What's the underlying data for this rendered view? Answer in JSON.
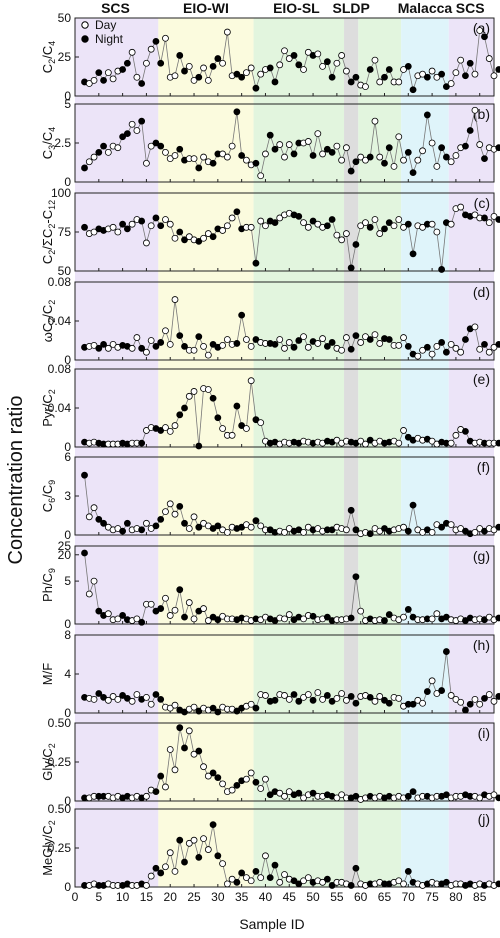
{
  "figure": {
    "ylabel": "Concentration ratio",
    "xlabel": "Sample ID",
    "x_ticks": [
      "0",
      "5",
      "10",
      "15",
      "20",
      "25",
      "30",
      "35",
      "40",
      "45",
      "50",
      "55",
      "60",
      "65",
      "70",
      "75",
      "80",
      "85"
    ],
    "x_tick_values": [
      0,
      5,
      10,
      15,
      20,
      25,
      30,
      35,
      40,
      45,
      50,
      55,
      60,
      65,
      70,
      75,
      80,
      85
    ],
    "xlim": [
      0,
      88
    ],
    "legend": [
      {
        "label": "Day",
        "marker": "open-circle"
      },
      {
        "label": "Night",
        "marker": "filled-circle"
      }
    ],
    "regions": [
      {
        "label": "SCS",
        "x0": 0,
        "x1": 17.5,
        "color": "#ece4f8",
        "label_color": "#8d3fd6"
      },
      {
        "label": "EIO-WI",
        "x0": 17.5,
        "x1": 37.5,
        "color": "#fbfbde",
        "label_color": "#e0a01c"
      },
      {
        "label": "EIO-SL",
        "x0": 37.5,
        "x1": 56.5,
        "color": "#e2f5de",
        "label_color": "#6aa834"
      },
      {
        "label": "SLDP",
        "x0": 56.5,
        "x1": 59.5,
        "color": "#dddddd",
        "label_color": "#555555"
      },
      {
        "label": "",
        "x0": 59.5,
        "x1": 68.5,
        "color": "#e2f5de",
        "label_color": "#6aa834"
      },
      {
        "label": "Malacca",
        "x0": 68.5,
        "x1": 78.5,
        "color": "#dff4fa",
        "label_color": "#2aa8dc"
      },
      {
        "label": "SCS",
        "x0": 78.5,
        "x1": 88,
        "color": "#ece4f8",
        "label_color": "#8d3fd6"
      }
    ]
  },
  "chart_data": [
    {
      "type": "scatter",
      "tag": "(a)",
      "ylabel": "C2/C4",
      "ylim": [
        0,
        50
      ],
      "yticks": [
        "0",
        "25",
        "50"
      ],
      "values": [
        9,
        8,
        10,
        15,
        10,
        15,
        11,
        16,
        17,
        21,
        28,
        12,
        8,
        21,
        30,
        35,
        21,
        37,
        12,
        13,
        26,
        16,
        19,
        10,
        12,
        18,
        10,
        19,
        24,
        21,
        41,
        13,
        14,
        12,
        15,
        18,
        5,
        14,
        17,
        18,
        9,
        20,
        29,
        24,
        26,
        20,
        17,
        28,
        26,
        27,
        19,
        22,
        12,
        21,
        26,
        16,
        9,
        12,
        7,
        6,
        17,
        23,
        9,
        12,
        17,
        9,
        9,
        17,
        19,
        4,
        13,
        14,
        12,
        16,
        12,
        14,
        6,
        8,
        15,
        23,
        13,
        21,
        14,
        42,
        38,
        24,
        13,
        17,
        18,
        22
      ]
    },
    {
      "type": "scatter",
      "tag": "(b)",
      "ylabel": "C3/C4",
      "ylim": [
        0,
        5
      ],
      "yticks": [
        "0",
        "2.5",
        "5"
      ],
      "values": [
        0.9,
        1.3,
        1.6,
        1.9,
        2.3,
        1.9,
        2.3,
        2.2,
        2.9,
        3.1,
        3.7,
        3.3,
        3.9,
        1.2,
        2.3,
        2.5,
        2.3,
        1.9,
        1.5,
        1.7,
        2.1,
        1.4,
        1.5,
        1.5,
        0.9,
        1.6,
        1.3,
        1.2,
        1.8,
        1.8,
        1.6,
        2.3,
        4.5,
        1.7,
        1.4,
        1.1,
        1.2,
        0.4,
        1.8,
        3.0,
        2.1,
        2.4,
        1.6,
        2.4,
        1.8,
        2.5,
        2.5,
        2.6,
        1.7,
        3.1,
        1.8,
        2.1,
        1.9,
        2.3,
        1.4,
        2.2,
        0.7,
        1.3,
        1.6,
        1.4,
        1.6,
        3.9,
        1.6,
        1.2,
        2.2,
        1.0,
        2.9,
        1.4,
        1.9,
        0.6,
        1.4,
        2.0,
        4.3,
        2.5,
        1.0,
        2.2,
        1.6,
        1.3,
        1.7,
        2.2,
        2.3,
        3.3,
        4.6,
        2.4,
        1.5,
        2.2,
        2.1,
        2.2,
        1.8,
        2.1
      ]
    },
    {
      "type": "scatter",
      "tag": "(c)",
      "ylabel": "C2/ΣC2-C12",
      "ylim": [
        50,
        100
      ],
      "yticks": [
        "50",
        "75",
        "100"
      ],
      "values": [
        78,
        74,
        75,
        77,
        76,
        77,
        78,
        75,
        80,
        77,
        80,
        83,
        82,
        68,
        79,
        84,
        79,
        83,
        80,
        71,
        75,
        70,
        72,
        70,
        69,
        71,
        74,
        72,
        77,
        76,
        79,
        84,
        88,
        77,
        78,
        78,
        55,
        82,
        79,
        82,
        81,
        84,
        86,
        87,
        86,
        85,
        81,
        78,
        82,
        80,
        78,
        79,
        83,
        73,
        70,
        74,
        52,
        67,
        79,
        81,
        78,
        83,
        74,
        77,
        81,
        79,
        83,
        78,
        80,
        61,
        79,
        78,
        80,
        80,
        75,
        51,
        81,
        80,
        90,
        91,
        86,
        85,
        86,
        84,
        84,
        81,
        85,
        83,
        86,
        86
      ]
    },
    {
      "type": "scatter",
      "tag": "(d)",
      "ylabel": "ωC2/C2",
      "ylim": [
        0,
        0.08
      ],
      "yticks": [
        "0",
        "0.04",
        "0.08"
      ],
      "values": [
        0.013,
        0.014,
        0.015,
        0.012,
        0.016,
        0.012,
        0.016,
        0.013,
        0.015,
        0.014,
        0.012,
        0.023,
        0.012,
        0.008,
        0.02,
        0.014,
        0.018,
        0.03,
        0.016,
        0.062,
        0.025,
        0.014,
        0.01,
        0.01,
        0.024,
        0.014,
        0.005,
        0.016,
        0.013,
        0.015,
        0.021,
        0.016,
        0.017,
        0.046,
        0.021,
        0.014,
        0.021,
        0.018,
        0.017,
        0.017,
        0.016,
        0.021,
        0.012,
        0.018,
        0.013,
        0.02,
        0.024,
        0.013,
        0.019,
        0.017,
        0.022,
        0.014,
        0.018,
        0.012,
        0.01,
        0.023,
        0.011,
        0.025,
        0.018,
        0.024,
        0.021,
        0.026,
        0.017,
        0.022,
        0.021,
        0.015,
        0.015,
        0.023,
        0.014,
        0.006,
        0.004,
        0.01,
        0.013,
        0.006,
        0.014,
        0.018,
        0.008,
        0.016,
        0.012,
        0.008,
        0.021,
        0.032,
        0.034,
        0.011,
        0.016,
        0.008,
        0.013,
        0.016,
        0.011,
        0.017
      ]
    },
    {
      "type": "scatter",
      "tag": "(e)",
      "ylabel": "Pyr/C2",
      "ylim": [
        0,
        0.08
      ],
      "yticks": [
        "0",
        "0.04",
        "0.08"
      ],
      "values": [
        0.005,
        0.004,
        0.005,
        0.004,
        0.003,
        0.003,
        0.003,
        0.003,
        0.004,
        0.003,
        0.004,
        0.004,
        0.004,
        0.017,
        0.02,
        0.019,
        0.017,
        0.02,
        0.016,
        0.022,
        0.033,
        0.04,
        0.052,
        0.057,
        0.001,
        0.06,
        0.059,
        0.05,
        0.03,
        0.019,
        0.012,
        0.012,
        0.042,
        0.022,
        0.019,
        0.068,
        0.028,
        0.025,
        0.006,
        0.004,
        0.005,
        0.003,
        0.005,
        0.004,
        0.005,
        0.004,
        0.006,
        0.005,
        0.004,
        0.005,
        0.004,
        0.006,
        0.005,
        0.007,
        0.004,
        0.006,
        0.005,
        0.004,
        0.006,
        0.003,
        0.007,
        0.004,
        0.006,
        0.004,
        0.005,
        0.006,
        0.004,
        0.017,
        0.01,
        0.007,
        0.009,
        0.007,
        0.008,
        0.006,
        0.003,
        0.005,
        0.004,
        0.004,
        0.012,
        0.018,
        0.016,
        0.006,
        0.004,
        0.005,
        0.004,
        0.004,
        0.004,
        0.004
      ]
    },
    {
      "type": "scatter",
      "tag": "(f)",
      "ylabel": "C6/C9",
      "ylim": [
        0,
        6
      ],
      "yticks": [
        "0",
        "3",
        "6"
      ],
      "values": [
        4.6,
        1.4,
        2.1,
        1.2,
        0.9,
        0.6,
        0.4,
        0.5,
        0.3,
        0.9,
        0.4,
        0.5,
        0.4,
        0.9,
        0.5,
        0.7,
        1.2,
        1.8,
        2.4,
        1.6,
        2.2,
        0.9,
        0.5,
        1.4,
        0.6,
        0.9,
        0.7,
        0.5,
        0.7,
        0.4,
        0.2,
        0.6,
        0.5,
        0.6,
        0.8,
        0.6,
        1.1,
        0.7,
        0.4,
        0.4,
        0.2,
        0.3,
        0.2,
        0.5,
        0.3,
        0.4,
        0.2,
        0.6,
        0.4,
        0.5,
        0.3,
        0.4,
        0.4,
        0.6,
        0.5,
        0.4,
        1.9,
        0.4,
        0.1,
        0.2,
        0.1,
        0.5,
        0.3,
        0.5,
        0.3,
        0.4,
        0.5,
        0.6,
        0.3,
        2.3,
        0.4,
        0.2,
        0.4,
        0.2,
        0.8,
        0.6,
        0.9,
        0.8,
        0.4,
        0.5,
        0.3,
        0.1,
        0.2,
        0.5,
        0.3,
        0.5,
        0.4,
        0.6,
        0.5,
        0.6
      ]
    },
    {
      "type": "scatter",
      "tag": "(g)",
      "ylabel": "Ph/C9",
      "ylim": [
        0,
        25
      ],
      "yticks": [
        "0",
        "5",
        "20",
        "25"
      ],
      "values": [
        21,
        3.5,
        5,
        1.5,
        1,
        1.2,
        0.5,
        0.6,
        1,
        0.5,
        0.4,
        0.6,
        0.2,
        2.3,
        2.3,
        1.5,
        1.8,
        3,
        1,
        1.6,
        4,
        0.8,
        2.5,
        0.6,
        1.5,
        1.8,
        0.4,
        0.8,
        0.5,
        0.9,
        0.6,
        0.6,
        0.5,
        0.7,
        0.6,
        0.4,
        0.6,
        0.5,
        0.8,
        0.6,
        0.4,
        0.7,
        0.6,
        1.1,
        0.5,
        0.8,
        0.6,
        1,
        0.9,
        0.5,
        0.6,
        0.8,
        0.4,
        0.5,
        0.5,
        0.6,
        0.7,
        7.5,
        1.5,
        0.4,
        0.6,
        0.4,
        0.5,
        0.4,
        1.1,
        0.7,
        0.5,
        0.8,
        1.7,
        0.8,
        0.5,
        0.5,
        0.6,
        0.6,
        1.2,
        0.6,
        0.8,
        0.5,
        0.4,
        0.6,
        0.4,
        0.7,
        0.5,
        0.6,
        0.5,
        0.8,
        0.5,
        0.7,
        0.6,
        0.7
      ]
    },
    {
      "type": "scatter",
      "tag": "(h)",
      "ylabel": "M/F",
      "ylim": [
        0,
        8
      ],
      "yticks": [
        "0",
        "4",
        "8"
      ],
      "values": [
        1.6,
        1.5,
        1.4,
        2.0,
        1.6,
        1.3,
        1.7,
        1.4,
        1.8,
        1.5,
        1.2,
        1.9,
        1.4,
        1.6,
        0.9,
        1.9,
        1.4,
        0.6,
        0.5,
        0.8,
        0.3,
        0.1,
        0.4,
        0.6,
        0.2,
        0.5,
        0.3,
        0.5,
        0.1,
        0.6,
        0.4,
        0.4,
        0.2,
        0.5,
        0.7,
        0.9,
        0.5,
        1.9,
        1.8,
        1.2,
        1.3,
        1.9,
        1.8,
        1.4,
        1.9,
        1.2,
        1.6,
        1.9,
        1.3,
        2.1,
        1.4,
        1.8,
        1.2,
        1.5,
        2.0,
        1.3,
        1.7,
        1.0,
        1.7,
        1.8,
        1.6,
        1.2,
        1.7,
        1.3,
        1.0,
        1.6,
        1.5,
        0.7,
        0.9,
        0.9,
        1.3,
        1.0,
        2.2,
        3.3,
        2.0,
        2.3,
        6.3,
        1.8,
        1.4,
        1.1,
        0.3,
        0.9,
        1.4,
        0.9,
        1.5,
        1.9,
        1.2,
        1.7,
        2.9,
        2.3
      ]
    },
    {
      "type": "scatter",
      "tag": "(i)",
      "ylabel": "Gly/C2",
      "ylim": [
        0,
        0.5
      ],
      "yticks": [
        "0",
        "0.25",
        "0.50"
      ],
      "values": [
        0.02,
        0.02,
        0.03,
        0.03,
        0.03,
        0.03,
        0.02,
        0.03,
        0.02,
        0.03,
        0.02,
        0.03,
        0.02,
        0.03,
        0.07,
        0.06,
        0.16,
        0.09,
        0.33,
        0.2,
        0.47,
        0.34,
        0.45,
        0.3,
        0.32,
        0.22,
        0.16,
        0.18,
        0.15,
        0.11,
        0.06,
        0.07,
        0.1,
        0.13,
        0.14,
        0.18,
        0.12,
        0.08,
        0.14,
        0.04,
        0.06,
        0.05,
        0.03,
        0.06,
        0.04,
        0.05,
        0.02,
        0.04,
        0.05,
        0.03,
        0.03,
        0.04,
        0.03,
        0.02,
        0.04,
        0.02,
        0.02,
        0.03,
        0.01,
        0.02,
        0.03,
        0.02,
        0.03,
        0.02,
        0.03,
        0.02,
        0.03,
        0.02,
        0.03,
        0.06,
        0.02,
        0.03,
        0.03,
        0.02,
        0.03,
        0.03,
        0.04,
        0.02,
        0.03,
        0.03,
        0.04,
        0.03,
        0.03,
        0.02,
        0.04,
        0.03,
        0.04,
        0.02,
        0.03,
        0.04
      ]
    },
    {
      "type": "scatter",
      "tag": "(j)",
      "ylabel": "MeGly/C2",
      "ylim": [
        0,
        0.5
      ],
      "yticks": [
        "0",
        "0.25",
        "0.50"
      ],
      "values": [
        0.01,
        0.01,
        0.02,
        0.01,
        0.01,
        0.02,
        0.01,
        0.01,
        0.01,
        0.02,
        0.01,
        0.01,
        0.02,
        0.01,
        0.07,
        0.12,
        0.09,
        0.13,
        0.22,
        0.1,
        0.3,
        0.16,
        0.28,
        0.3,
        0.19,
        0.31,
        0.24,
        0.4,
        0.2,
        0.15,
        0.02,
        0.05,
        0.03,
        0.09,
        0.06,
        0.04,
        0.1,
        0.06,
        0.2,
        0.06,
        0.14,
        0.03,
        0.08,
        0.05,
        0.04,
        0.02,
        0.04,
        0.06,
        0.03,
        0.04,
        0.03,
        0.05,
        0.01,
        0.03,
        0.03,
        0.02,
        0.01,
        0.12,
        0.02,
        0.01,
        0.02,
        0.02,
        0.03,
        0.02,
        0.02,
        0.03,
        0.04,
        0.02,
        0.1,
        0.03,
        0.02,
        0.01,
        0.02,
        0.03,
        0.02,
        0.02,
        0.03,
        0.01,
        0.02,
        0.02,
        0.01,
        0.02,
        0.01,
        0.02,
        0.01,
        0.02,
        0.01,
        0.02,
        0.01,
        0.03
      ]
    }
  ]
}
